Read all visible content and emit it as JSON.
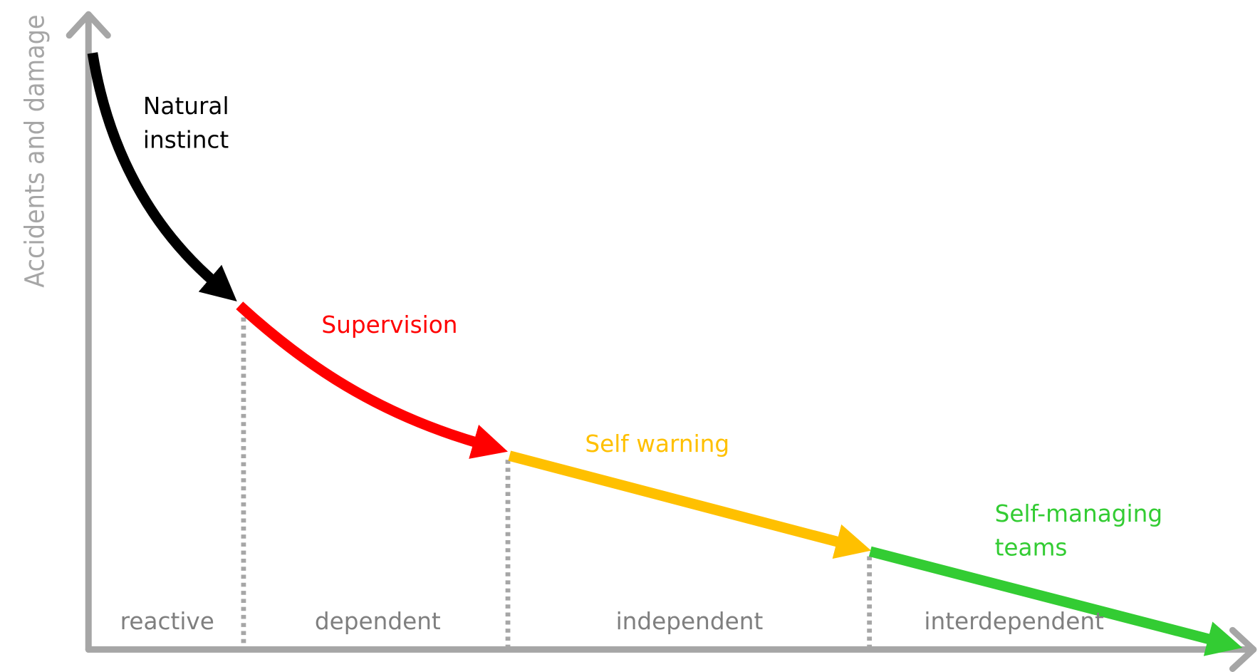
{
  "y_axis_label": "Accidents and damage",
  "stages": [
    {
      "label": [
        "Natural",
        "instinct"
      ],
      "color": "#000000"
    },
    {
      "label": [
        "Supervision"
      ],
      "color": "#ff0000"
    },
    {
      "label": [
        "Self warning"
      ],
      "color": "#ffc000"
    },
    {
      "label": [
        "Self-managing",
        "teams"
      ],
      "color": "#33cc33"
    }
  ],
  "phases": [
    "reactive",
    "dependent",
    "independent",
    "interdependent"
  ]
}
